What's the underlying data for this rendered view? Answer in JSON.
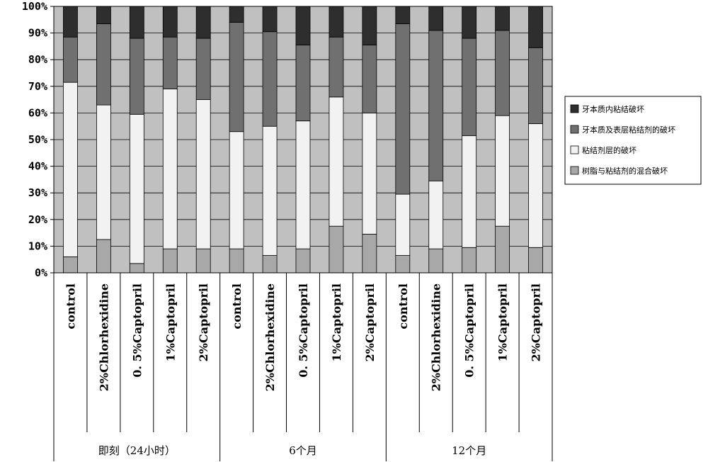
{
  "chart_data": {
    "type": "bar",
    "stacked": true,
    "normalized": true,
    "title": "",
    "xlabel": "",
    "ylabel": "",
    "ylim": [
      0,
      100
    ],
    "yticks": [
      "0%",
      "10%",
      "20%",
      "30%",
      "40%",
      "50%",
      "60%",
      "70%",
      "80%",
      "90%",
      "100%"
    ],
    "grid": true,
    "legend_position": "right",
    "plot_background": "#c0c0c0",
    "categories": [
      "control",
      "2%Chlorhexidine",
      "0.5%Captopril",
      "1%Captopril",
      "2%Captopril",
      "control",
      "2%Chlorhexidine",
      "0.5%Captopril",
      "1%Captopril",
      "2%Captopril",
      "control",
      "2%Chlorhexidine",
      "0.5%Captopril",
      "1%Captopril",
      "2%Captopril"
    ],
    "category_labels": [
      "control",
      "2%Chlorhexidine",
      "0. 5%Captopril",
      "1%Captopril",
      "2%Captopril",
      "control",
      "2%Chlorhexidine",
      "0. 5%Captopril",
      "1%Captopril",
      "2%Captopril",
      "control",
      "2%Chlorhexidine",
      "0. 5%Captopril",
      "1%Captopril",
      "2%Captopril"
    ],
    "groups": [
      {
        "label": "即刻（24小时）",
        "start": 0,
        "count": 5
      },
      {
        "label": "6个月",
        "start": 5,
        "count": 5
      },
      {
        "label": "12个月",
        "start": 10,
        "count": 5
      }
    ],
    "series": [
      {
        "name": "树脂与粘结剂的混合破坏",
        "color": "#a8a8a8",
        "values": [
          6,
          12.5,
          3.5,
          9,
          9,
          9,
          6.5,
          9,
          17.5,
          14.5,
          6.5,
          9,
          9.5,
          17.5,
          9.5
        ]
      },
      {
        "name": "粘结剂层的破坏",
        "color": "#f2f2f2",
        "values": [
          65.5,
          50.5,
          56,
          60,
          56,
          44,
          48.5,
          48,
          48.5,
          45.5,
          23,
          25.5,
          42,
          41.5,
          46.5
        ]
      },
      {
        "name": "牙本质及表层粘结剂的破坏",
        "color": "#707070",
        "values": [
          17,
          30.5,
          28.5,
          19.5,
          23,
          41,
          35.5,
          28.5,
          22.5,
          25.5,
          64,
          56.5,
          36.5,
          32,
          28.5
        ]
      },
      {
        "name": "牙本质内粘结破坏",
        "color": "#2e2e2e",
        "values": [
          11.5,
          6.5,
          12,
          11.5,
          12,
          6,
          9.5,
          14.5,
          11.5,
          14.5,
          6.5,
          9,
          12,
          9,
          15.5
        ]
      }
    ],
    "legend_order": [
      3,
      2,
      1,
      0
    ]
  }
}
